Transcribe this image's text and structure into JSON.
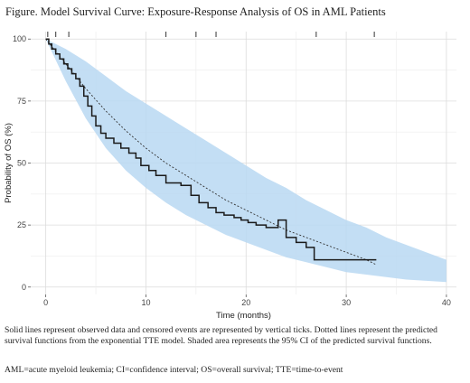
{
  "figure": {
    "title": "Figure. Model Survival Curve: Exposure-Response Analysis of OS in AML Patients",
    "caption": "Solid lines represent observed data and censored events are represented by vertical ticks. Dotted lines represent the predicted survival functions from the exponential TTE model. Shaded area represents the 95% CI of the predicted survival functions.",
    "abbreviations": "AML=acute myeloid leukemia; CI=confidence interval; OS=overall survival; TTE=time-to-event"
  },
  "chart_data": {
    "type": "line",
    "xlabel": "Time (months)",
    "ylabel": "Probability of OS (%)",
    "xlim": [
      -1.5,
      41
    ],
    "ylim": [
      -3,
      103
    ],
    "x_ticks": [
      0,
      10,
      20,
      30,
      40
    ],
    "y_ticks": [
      0,
      25,
      50,
      75,
      100
    ],
    "grid": true,
    "colors": {
      "band": "#b8d8f2",
      "observed": "#1a1a1a",
      "predicted": "#333333"
    },
    "censor_ticks_top": [
      0.2,
      1.0,
      2.3,
      12.0,
      15.0,
      17.0,
      27.0,
      32.8
    ],
    "observed_km": [
      [
        0,
        100
      ],
      [
        0.3,
        98
      ],
      [
        0.6,
        96
      ],
      [
        1.0,
        94
      ],
      [
        1.4,
        92
      ],
      [
        1.8,
        90
      ],
      [
        2.2,
        88
      ],
      [
        2.6,
        86
      ],
      [
        3.0,
        84
      ],
      [
        3.4,
        81
      ],
      [
        3.8,
        77
      ],
      [
        4.2,
        73
      ],
      [
        4.6,
        69
      ],
      [
        5.0,
        65
      ],
      [
        5.5,
        62
      ],
      [
        6.0,
        60
      ],
      [
        6.8,
        58
      ],
      [
        7.5,
        56
      ],
      [
        8.3,
        54
      ],
      [
        9.0,
        52
      ],
      [
        9.5,
        49
      ],
      [
        10.3,
        47
      ],
      [
        11.0,
        45
      ],
      [
        12.0,
        42
      ],
      [
        13.5,
        41
      ],
      [
        14.5,
        37
      ],
      [
        15.3,
        34
      ],
      [
        16.2,
        32
      ],
      [
        17.0,
        30
      ],
      [
        17.8,
        29
      ],
      [
        18.8,
        28
      ],
      [
        19.5,
        27
      ],
      [
        20.2,
        26
      ],
      [
        21.0,
        25
      ],
      [
        22.0,
        24
      ],
      [
        23.2,
        27
      ],
      [
        24.0,
        20
      ],
      [
        25.0,
        18
      ],
      [
        26.0,
        16
      ],
      [
        26.8,
        11
      ],
      [
        33.0,
        11
      ]
    ],
    "predicted_median": [
      [
        0,
        100
      ],
      [
        2,
        90
      ],
      [
        4,
        80
      ],
      [
        6,
        71
      ],
      [
        8,
        63
      ],
      [
        10,
        56
      ],
      [
        12,
        50
      ],
      [
        14,
        45
      ],
      [
        16,
        40
      ],
      [
        18,
        35
      ],
      [
        20,
        31
      ],
      [
        22,
        27
      ],
      [
        24,
        23
      ],
      [
        26,
        20
      ],
      [
        28,
        17
      ],
      [
        30,
        14
      ],
      [
        32,
        11
      ],
      [
        33,
        9
      ]
    ],
    "ci_upper": [
      [
        0,
        100
      ],
      [
        2,
        96
      ],
      [
        4,
        91
      ],
      [
        6,
        85
      ],
      [
        8,
        79
      ],
      [
        10,
        74
      ],
      [
        12,
        69
      ],
      [
        14,
        64
      ],
      [
        16,
        59
      ],
      [
        18,
        54
      ],
      [
        20,
        49
      ],
      [
        22,
        44
      ],
      [
        24,
        40
      ],
      [
        26,
        35
      ],
      [
        28,
        31
      ],
      [
        30,
        27
      ],
      [
        32,
        24
      ],
      [
        34,
        20
      ],
      [
        36,
        17
      ],
      [
        38,
        14
      ],
      [
        40,
        11
      ]
    ],
    "ci_lower": [
      [
        0,
        100
      ],
      [
        2,
        83
      ],
      [
        4,
        68
      ],
      [
        6,
        56
      ],
      [
        8,
        47
      ],
      [
        10,
        40
      ],
      [
        12,
        34
      ],
      [
        14,
        29
      ],
      [
        16,
        25
      ],
      [
        18,
        21
      ],
      [
        20,
        18
      ],
      [
        22,
        15
      ],
      [
        24,
        12
      ],
      [
        26,
        10
      ],
      [
        28,
        8
      ],
      [
        30,
        6
      ],
      [
        32,
        5
      ],
      [
        34,
        4
      ],
      [
        36,
        3
      ],
      [
        38,
        2.5
      ],
      [
        40,
        2
      ]
    ]
  }
}
